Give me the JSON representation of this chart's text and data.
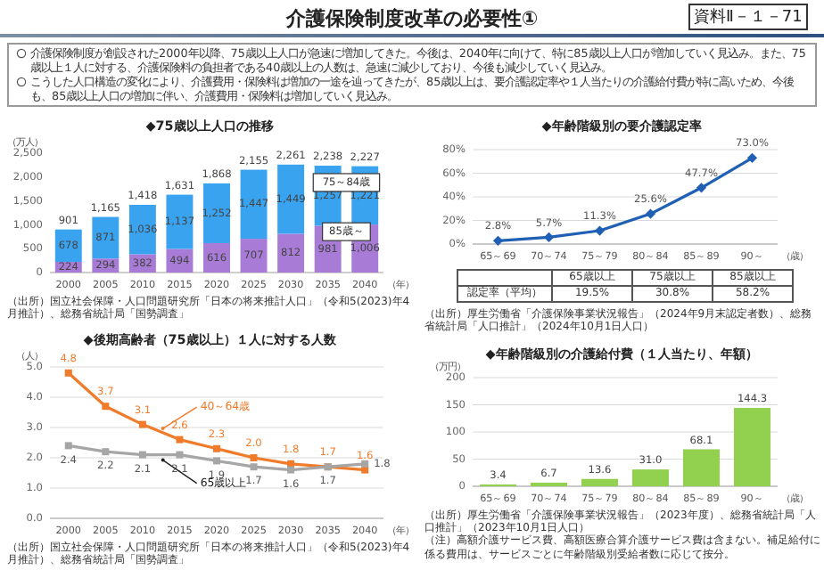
{
  "chart_data": [
    {
      "type": "other",
      "title": "介護保険制度改革の必要性①",
      "annotations": [
        "資料Ⅱ－１－71",
        "介護保険制度が創設された2000年以降、75歳以上人口が急速に増加してきた。今後は、2040年に向けて、特に85歳以上人口が増加していく見込み。また、75歳以上１人に対する、介護保険料の負担者である40歳以上の人数は、急速に減少しており、今後も減少していく見込み。",
        "こうした人口構造の変化により、介護費用・保険料は増加の一途を辿ってきたが、85歳以上は、要介護認定率や１人当たりの介護給付費が特に高いため、今後も、85歳以上人口の増加に伴い、介護費用・保険料は増加していく見込み。"
      ]
    },
    {
      "type": "bar",
      "title": "◆75歳以上人口の推移",
      "ylabel": "（万人）",
      "xlabel": "（年）",
      "stacked": true,
      "grid": false,
      "categories": [
        "2000",
        "2005",
        "2010",
        "2015",
        "2020",
        "2025",
        "2030",
        "2035",
        "2040"
      ],
      "ylim": [
        0,
        2500
      ],
      "yticks": [
        0,
        500,
        {
          "value": 1000,
          "label": "1,000"
        },
        {
          "value": 1500,
          "label": "1,500"
        },
        {
          "value": 2000,
          "label": "2,000"
        },
        {
          "value": 2500,
          "label": "2,500"
        }
      ],
      "series": [
        {
          "name": "85歳～",
          "color": "#a77bd6",
          "values": [
            224,
            294,
            382,
            494,
            616,
            707,
            812,
            981,
            1006
          ],
          "value_labels": [
            "224",
            "294",
            "382",
            "494",
            "616",
            "707",
            "812",
            "981",
            "1,006"
          ]
        },
        {
          "name": "75～84歳",
          "color": "#3aa3f0",
          "values": [
            678,
            871,
            1036,
            1137,
            1252,
            1447,
            1449,
            1257,
            1221
          ],
          "value_labels": [
            "678",
            "871",
            "1,036",
            "1,137",
            "1,252",
            "1,447",
            "1,449",
            "1,257",
            "1,221"
          ]
        }
      ],
      "totals": [
        "901",
        "1,165",
        "1,418",
        "1,631",
        "1,868",
        "2,155",
        "2,261",
        "2,238",
        "2,227"
      ],
      "annotations": [
        "（出所）国立社会保障・人口問題研究所「日本の将来推計人口」（令和5(2023)年4月推計）、総務省統計局「国勢調査」"
      ]
    },
    {
      "type": "line",
      "title": "◆後期高齢者（75歳以上）１人に対する人数",
      "ylabel": "（人）",
      "xlabel": "（年）",
      "grid": "y",
      "marker": "square",
      "line_style": "solid",
      "categories": [
        "2000",
        "2005",
        "2010",
        "2015",
        "2020",
        "2025",
        "2030",
        "2035",
        "2040"
      ],
      "ylim": [
        0,
        5
      ],
      "yticks": [
        {
          "value": 0,
          "label": "0.0"
        },
        {
          "value": 1,
          "label": "1.0"
        },
        {
          "value": 2,
          "label": "2.0"
        },
        {
          "value": 3,
          "label": "3.0"
        },
        {
          "value": 4,
          "label": "4.0"
        },
        {
          "value": 5,
          "label": "5.0"
        }
      ],
      "series": [
        {
          "name": "40～64歳",
          "color": "#f07b2a",
          "values": [
            4.8,
            3.7,
            3.1,
            2.6,
            2.3,
            2.0,
            1.8,
            1.7,
            1.6
          ],
          "value_labels": [
            "4.8",
            "3.7",
            "3.1",
            "2.6",
            "2.3",
            "2.0",
            "1.8",
            "1.7",
            "1.6"
          ]
        },
        {
          "name": "65歳以上",
          "color": "#a6a6a6",
          "values": [
            2.4,
            2.2,
            2.1,
            2.1,
            1.9,
            1.7,
            1.6,
            1.7,
            1.8
          ],
          "value_labels": [
            "2.4",
            "2.2",
            "2.1",
            "2.1",
            "1.9",
            "1.7",
            "1.6",
            "1.7",
            "1.8"
          ]
        }
      ],
      "annotations": [
        "（出所）国立社会保障・人口問題研究所「日本の将来推計人口」（令和5(2023)年4月推計）、総務省統計局「国勢調査」"
      ]
    },
    {
      "type": "line",
      "title": "◆年齢階級別の要介護認定率",
      "xlabel": "（歳）",
      "grid": "y",
      "marker": "diamond",
      "line_style": "solid",
      "categories": [
        "65～69",
        "70～74",
        "75～79",
        "80～84",
        "85～89",
        "90～"
      ],
      "ylim": [
        0,
        80
      ],
      "yticks": [
        {
          "value": 0,
          "label": "0%"
        },
        {
          "value": 20,
          "label": "20%"
        },
        {
          "value": 40,
          "label": "40%"
        },
        {
          "value": 60,
          "label": "60%"
        },
        {
          "value": 80,
          "label": "80%"
        }
      ],
      "series": [
        {
          "color": "#1f5fb4",
          "values": [
            2.8,
            5.7,
            11.3,
            25.6,
            47.7,
            73.0
          ],
          "value_labels": [
            "2.8%",
            "5.7%",
            "11.3%",
            "25.6%",
            "47.7%",
            "73.0%"
          ]
        }
      ],
      "annotations": [
        "65歳以上",
        "75歳以上",
        "85歳以上",
        "認定率（平均）",
        "19.5%",
        "30.8%",
        "58.2%",
        "（出所）厚生労働省「介護保険事業状況報告」（2024年9月末認定者数）、総務省統計局「人口推計」（2024年10月1日人口）"
      ]
    },
    {
      "type": "bar",
      "title": "◆年齢階級別の介護給付費（１人当たり、年額）",
      "ylabel": "（万円）",
      "xlabel": "（歳）",
      "grid": "y",
      "categories": [
        "65～69",
        "70～74",
        "75～79",
        "80～84",
        "85～89",
        "90～"
      ],
      "ylim": [
        0,
        200
      ],
      "yticks": [
        0,
        50,
        100,
        150,
        200
      ],
      "series": [
        {
          "color": "#92d050",
          "values": [
            3.4,
            6.7,
            13.6,
            31.0,
            68.1,
            144.3
          ],
          "value_labels": [
            "3.4",
            "6.7",
            "13.6",
            "31.0",
            "68.1",
            "144.3"
          ]
        }
      ],
      "annotations": [
        "（出所）厚生労働省「介護保険事業状況報告」（2023年度）、総務省統計局「人口推計」（2023年10月1日人口）",
        "（注）高額介護サービス費、高額医療合算介護サービス費は含まない。補足給付に係る費用は、サービスごとに年齢階級別受給者数に応じて按分。"
      ]
    }
  ]
}
